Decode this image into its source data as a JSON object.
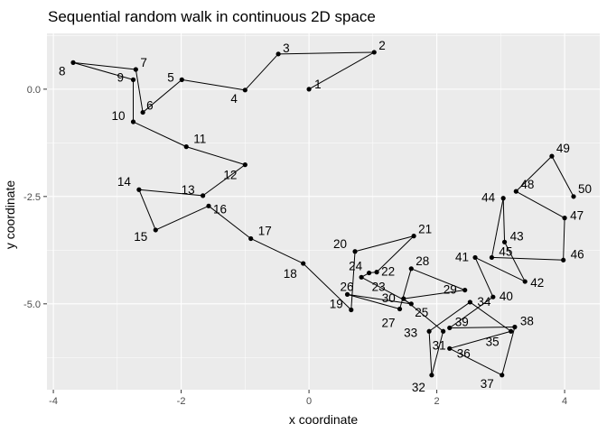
{
  "chart_data": {
    "type": "scatter",
    "title": "Sequential random walk in continuous 2D space",
    "xlabel": "x coordinate",
    "ylabel": "y coordinate",
    "xlim": [
      -4.1,
      4.55
    ],
    "ylim": [
      -7.0,
      1.3
    ],
    "x_ticks": [
      -4,
      -2,
      0,
      2,
      4
    ],
    "x_tick_labels": [
      "-4",
      "-2",
      "0",
      "2",
      "4"
    ],
    "y_ticks": [
      0.0,
      -2.5,
      -5.0
    ],
    "y_tick_labels": [
      "0.0",
      "-2.5",
      "-5.0"
    ],
    "grid": true,
    "panel_color": "#ebebeb",
    "grid_color": "#ffffff",
    "point_color": "#000000",
    "connect_points": true,
    "points": [
      {
        "label": "1",
        "x": 0.0,
        "y": 0.0
      },
      {
        "label": "2",
        "x": 1.02,
        "y": 0.86
      },
      {
        "label": "3",
        "x": -0.48,
        "y": 0.82
      },
      {
        "label": "4",
        "x": -1.0,
        "y": -0.02
      },
      {
        "label": "5",
        "x": -1.99,
        "y": 0.22
      },
      {
        "label": "6",
        "x": -2.6,
        "y": -0.54
      },
      {
        "label": "7",
        "x": -2.71,
        "y": 0.46
      },
      {
        "label": "8",
        "x": -3.69,
        "y": 0.62
      },
      {
        "label": "9",
        "x": -2.75,
        "y": 0.22
      },
      {
        "label": "10",
        "x": -2.75,
        "y": -0.76
      },
      {
        "label": "11",
        "x": -1.92,
        "y": -1.34
      },
      {
        "label": "12",
        "x": -1.0,
        "y": -1.76
      },
      {
        "label": "13",
        "x": -1.66,
        "y": -2.48
      },
      {
        "label": "14",
        "x": -2.66,
        "y": -2.34
      },
      {
        "label": "15",
        "x": -2.4,
        "y": -3.28
      },
      {
        "label": "16",
        "x": -1.57,
        "y": -2.72
      },
      {
        "label": "17",
        "x": -0.91,
        "y": -3.48
      },
      {
        "label": "18",
        "x": -0.09,
        "y": -4.06
      },
      {
        "label": "19",
        "x": 0.66,
        "y": -5.14
      },
      {
        "label": "20",
        "x": 0.72,
        "y": -3.78
      },
      {
        "label": "21",
        "x": 1.64,
        "y": -3.42
      },
      {
        "label": "22",
        "x": 1.06,
        "y": -4.26
      },
      {
        "label": "23",
        "x": 0.94,
        "y": -4.28
      },
      {
        "label": "24",
        "x": 0.82,
        "y": -4.38
      },
      {
        "label": "25",
        "x": 1.6,
        "y": -5.0
      },
      {
        "label": "26",
        "x": 0.6,
        "y": -4.78
      },
      {
        "label": "27",
        "x": 1.42,
        "y": -5.12
      },
      {
        "label": "28",
        "x": 1.6,
        "y": -4.18
      },
      {
        "label": "29",
        "x": 2.44,
        "y": -4.68
      },
      {
        "label": "30",
        "x": 1.48,
        "y": -4.88
      },
      {
        "label": "31",
        "x": 2.1,
        "y": -5.64
      },
      {
        "label": "32",
        "x": 1.92,
        "y": -6.66
      },
      {
        "label": "33",
        "x": 1.88,
        "y": -5.64
      },
      {
        "label": "34",
        "x": 2.52,
        "y": -4.96
      },
      {
        "label": "35",
        "x": 3.16,
        "y": -5.64
      },
      {
        "label": "36",
        "x": 2.2,
        "y": -6.04
      },
      {
        "label": "37",
        "x": 3.02,
        "y": -6.66
      },
      {
        "label": "38",
        "x": 3.22,
        "y": -5.54
      },
      {
        "label": "39",
        "x": 2.2,
        "y": -5.56
      },
      {
        "label": "40",
        "x": 2.88,
        "y": -4.84
      },
      {
        "label": "41",
        "x": 2.6,
        "y": -3.92
      },
      {
        "label": "42",
        "x": 3.38,
        "y": -4.48
      },
      {
        "label": "43",
        "x": 3.06,
        "y": -3.56
      },
      {
        "label": "44",
        "x": 3.04,
        "y": -2.54
      },
      {
        "label": "45",
        "x": 2.86,
        "y": -3.92
      },
      {
        "label": "46",
        "x": 3.98,
        "y": -3.98
      },
      {
        "label": "47",
        "x": 4.0,
        "y": -3.0
      },
      {
        "label": "48",
        "x": 3.24,
        "y": -2.38
      },
      {
        "label": "49",
        "x": 3.8,
        "y": -1.56
      },
      {
        "label": "50",
        "x": 4.14,
        "y": -2.5
      }
    ]
  }
}
